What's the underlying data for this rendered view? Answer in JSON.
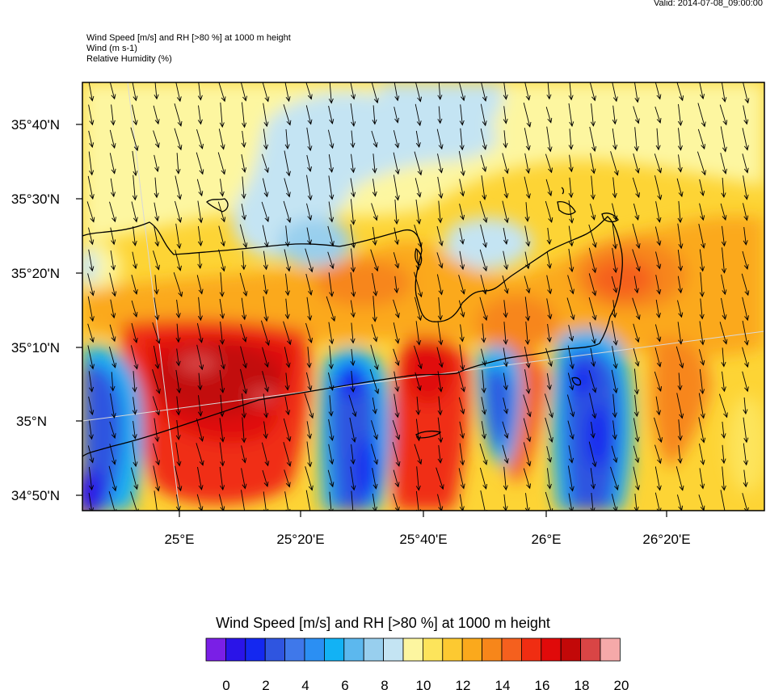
{
  "valid_label": "Valid: 2014-07-08_09:00:00",
  "header": {
    "line1": "Wind Speed [m/s] and RH [>80 %] at 1000 m height",
    "line2": "Wind   (m s-1)",
    "line3": "Relative Humidity   (%)"
  },
  "map": {
    "lat_labels": [
      "35°40'N",
      "35°30'N",
      "35°20'N",
      "35°10'N",
      "35°N",
      "34°50'N"
    ],
    "lon_labels": [
      "25°E",
      "25°20'E",
      "25°40'E",
      "26°E",
      "26°20'E"
    ],
    "wind_direction": "from north-northwest",
    "coastline_color": "#000000"
  },
  "colorbar": {
    "title": "Wind Speed [m/s] and RH [>80 %] at 1000 m height",
    "tick_labels": [
      "0",
      "2",
      "4",
      "6",
      "8",
      "10",
      "12",
      "14",
      "16",
      "18",
      "20"
    ],
    "colors": [
      "#7a1fe6",
      "#2a14e8",
      "#1428f0",
      "#2f55e0",
      "#3f78ea",
      "#2b8ff3",
      "#12b2f5",
      "#5cb8ee",
      "#98cfee",
      "#c4e4f3",
      "#fdf6a0",
      "#fde45b",
      "#fdc931",
      "#fba91c",
      "#f7861a",
      "#f5601e",
      "#f02d12",
      "#e00a0a",
      "#c20808",
      "#d94545",
      "#f5a9a9"
    ]
  }
}
